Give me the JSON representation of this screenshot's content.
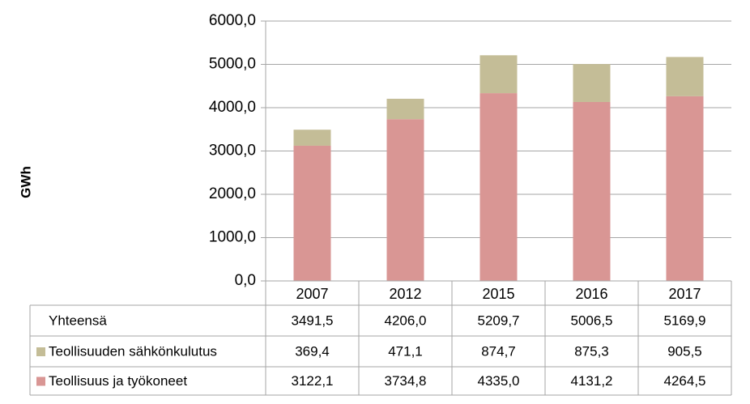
{
  "chart_data": {
    "type": "stacked_bar",
    "y_label": "GWh",
    "categories": [
      "2007",
      "2012",
      "2015",
      "2016",
      "2017"
    ],
    "series": [
      {
        "name": "Teollisuus ja työkoneet",
        "color": "#d99694",
        "values": [
          3122.1,
          3734.8,
          4335.0,
          4131.2,
          4264.5
        ],
        "value_labels": [
          "3122,1",
          "3734,8",
          "4335,0",
          "4131,2",
          "4264,5"
        ]
      },
      {
        "name": "Teollisuuden sähkönkulutus",
        "color": "#c4bd97",
        "values": [
          369.4,
          471.1,
          874.7,
          875.3,
          905.5
        ],
        "value_labels": [
          "369,4",
          "471,1",
          "874,7",
          "875,3",
          "905,5"
        ]
      }
    ],
    "totals": {
      "name": "Yhteensä",
      "labels": [
        "3491,5",
        "4206,0",
        "5209,7",
        "5006,5",
        "5169,9"
      ]
    },
    "ylim": [
      0,
      6000
    ],
    "yticks": [
      {
        "value": 0,
        "label": "0,0"
      },
      {
        "value": 1000,
        "label": "1000,0"
      },
      {
        "value": 2000,
        "label": "2000,0"
      },
      {
        "value": 3000,
        "label": "3000,0"
      },
      {
        "value": 4000,
        "label": "4000,0"
      },
      {
        "value": 5000,
        "label": "5000,0"
      },
      {
        "value": 6000,
        "label": "6000,0"
      }
    ],
    "grid": true
  }
}
